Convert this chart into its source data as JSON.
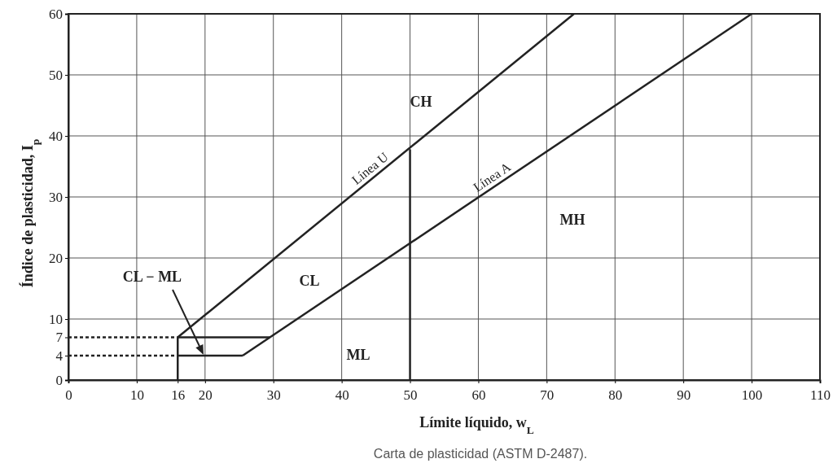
{
  "chart_data": {
    "type": "line",
    "xlabel": "Límite líquido, w$_{L}$",
    "ylabel": "Índice de plasticidad, I$_{p}$",
    "xlim": [
      0,
      110
    ],
    "ylim": [
      0,
      60
    ],
    "xticks": [
      0,
      10,
      {
        "value": 16,
        "label": "16"
      },
      20,
      30,
      40,
      50,
      60,
      70,
      80,
      90,
      100,
      110
    ],
    "yticks": [
      0,
      {
        "value": 4,
        "label": "4"
      },
      {
        "value": 7,
        "label": "7"
      },
      10,
      20,
      30,
      40,
      50,
      60
    ],
    "grid": true,
    "marker": "none",
    "line_style": "solid",
    "series": [
      {
        "name": "Línea U",
        "color": "#222222",
        "x": [
          16,
          74
        ],
        "values": [
          7,
          60
        ]
      },
      {
        "name": "Línea A",
        "color": "#222222",
        "x": [
          25.5,
          100
        ],
        "values": [
          4,
          60
        ]
      },
      {
        "color": "#222222",
        "x": [
          16,
          25.5
        ],
        "values": [
          4,
          4
        ]
      },
      {
        "color": "#222222",
        "x": [
          16,
          29.5
        ],
        "values": [
          7,
          7
        ]
      },
      {
        "color": "#222222",
        "x": [
          16,
          16
        ],
        "values": [
          0,
          7
        ]
      },
      {
        "color": "#222222",
        "x": [
          50,
          50
        ],
        "values": [
          0,
          37.8
        ]
      },
      {
        "color": "#222222",
        "x": [
          0,
          16
        ],
        "values": [
          7,
          7
        ],
        "line_style": "dashed"
      },
      {
        "color": "#222222",
        "x": [
          0,
          16
        ],
        "values": [
          4,
          4
        ],
        "line_style": "dashed"
      }
    ],
    "annotations": [
      "CL − ML",
      "CH",
      "MH",
      "CL",
      "ML",
      "Carta de plasticidad (ASTM D-2487)."
    ]
  }
}
